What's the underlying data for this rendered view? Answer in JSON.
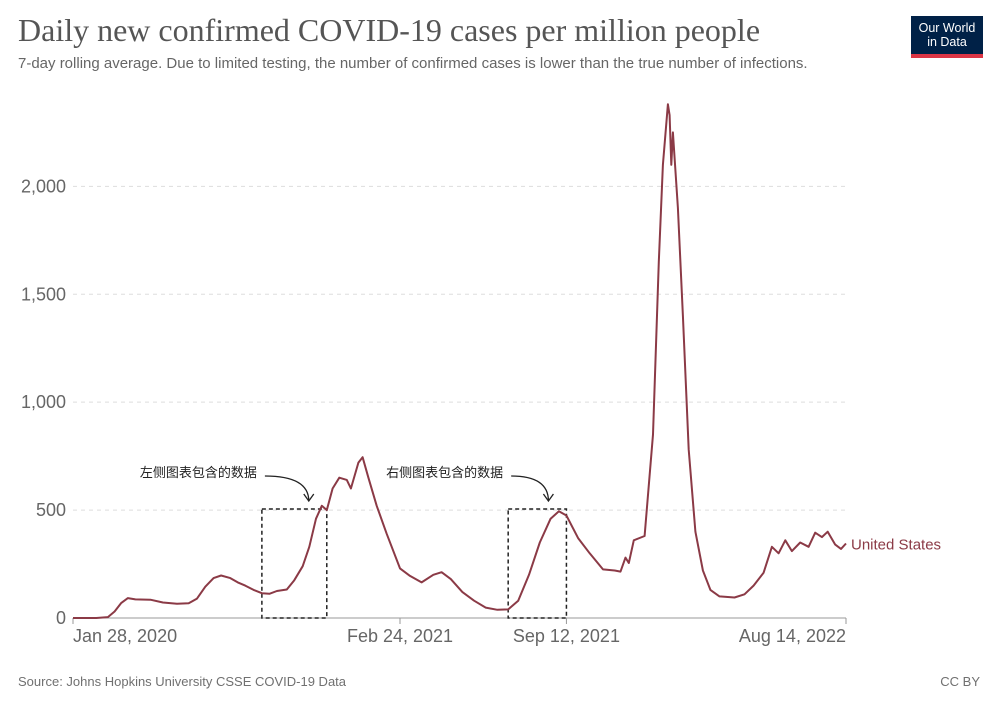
{
  "header": {
    "title": "Daily new confirmed COVID-19 cases per million people",
    "subtitle": "7-day rolling average. Due to limited testing, the number of confirmed cases is lower than the true number of infections.",
    "logo_line1": "Our World",
    "logo_line2": "in Data"
  },
  "footer": {
    "source": "Source: Johns Hopkins University CSSE COVID-19 Data",
    "license": "CC BY"
  },
  "colors": {
    "series": "#8b3a46",
    "grid": "#dddddd",
    "axis_text": "#666666",
    "logo_bg": "#002147",
    "logo_accent": "#dc3545"
  },
  "chart_data": {
    "type": "line",
    "title": "Daily new confirmed COVID-19 cases per million people",
    "subtitle": "7-day rolling average. Due to limited testing, the number of confirmed cases is lower than the true number of infections.",
    "xlabel": "",
    "ylabel": "",
    "x_range": [
      "2020-01-28",
      "2022-08-14"
    ],
    "ylim": [
      0,
      2400
    ],
    "y_ticks": [
      0,
      500,
      1000,
      1500,
      2000
    ],
    "y_tick_labels": [
      "0",
      "500",
      "1,000",
      "1,500",
      "2,000"
    ],
    "x_ticks": [
      "2020-01-28",
      "2021-02-24",
      "2021-09-12",
      "2022-08-14"
    ],
    "x_tick_labels": [
      "Jan 28, 2020",
      "Feb 24, 2021",
      "Sep 12, 2021",
      "Aug 14, 2022"
    ],
    "grid": true,
    "legend": "end-of-line label",
    "series": [
      {
        "name": "United States",
        "color": "#8b3a46",
        "points": [
          [
            "2020-01-28",
            0
          ],
          [
            "2020-02-25",
            0
          ],
          [
            "2020-03-10",
            4
          ],
          [
            "2020-03-18",
            30
          ],
          [
            "2020-03-26",
            70
          ],
          [
            "2020-04-03",
            92
          ],
          [
            "2020-04-12",
            86
          ],
          [
            "2020-04-30",
            85
          ],
          [
            "2020-05-15",
            72
          ],
          [
            "2020-06-01",
            66
          ],
          [
            "2020-06-15",
            68
          ],
          [
            "2020-06-25",
            90
          ],
          [
            "2020-07-05",
            145
          ],
          [
            "2020-07-15",
            185
          ],
          [
            "2020-07-24",
            197
          ],
          [
            "2020-08-04",
            185
          ],
          [
            "2020-08-13",
            165
          ],
          [
            "2020-08-22",
            150
          ],
          [
            "2020-09-01",
            130
          ],
          [
            "2020-09-11",
            115
          ],
          [
            "2020-09-20",
            112
          ],
          [
            "2020-09-29",
            125
          ],
          [
            "2020-10-11",
            132
          ],
          [
            "2020-10-20",
            175
          ],
          [
            "2020-10-30",
            240
          ],
          [
            "2020-11-07",
            330
          ],
          [
            "2020-11-15",
            460
          ],
          [
            "2020-11-22",
            520
          ],
          [
            "2020-11-28",
            500
          ],
          [
            "2020-12-05",
            600
          ],
          [
            "2020-12-13",
            650
          ],
          [
            "2020-12-22",
            640
          ],
          [
            "2020-12-27",
            600
          ],
          [
            "2021-01-05",
            720
          ],
          [
            "2021-01-10",
            745
          ],
          [
            "2021-01-17",
            650
          ],
          [
            "2021-01-27",
            520
          ],
          [
            "2021-02-08",
            390
          ],
          [
            "2021-02-24",
            230
          ],
          [
            "2021-03-08",
            195
          ],
          [
            "2021-03-22",
            165
          ],
          [
            "2021-04-05",
            200
          ],
          [
            "2021-04-15",
            212
          ],
          [
            "2021-04-26",
            180
          ],
          [
            "2021-05-10",
            120
          ],
          [
            "2021-05-24",
            80
          ],
          [
            "2021-06-07",
            48
          ],
          [
            "2021-06-21",
            38
          ],
          [
            "2021-07-04",
            40
          ],
          [
            "2021-07-16",
            80
          ],
          [
            "2021-07-29",
            200
          ],
          [
            "2021-08-11",
            350
          ],
          [
            "2021-08-24",
            460
          ],
          [
            "2021-09-03",
            495
          ],
          [
            "2021-09-12",
            475
          ],
          [
            "2021-09-26",
            370
          ],
          [
            "2021-10-10",
            300
          ],
          [
            "2021-10-26",
            225
          ],
          [
            "2021-11-09",
            220
          ],
          [
            "2021-11-16",
            215
          ],
          [
            "2021-11-22",
            280
          ],
          [
            "2021-11-26",
            255
          ],
          [
            "2021-12-02",
            360
          ],
          [
            "2021-12-15",
            380
          ],
          [
            "2021-12-25",
            850
          ],
          [
            "2022-01-01",
            1650
          ],
          [
            "2022-01-06",
            2100
          ],
          [
            "2022-01-12",
            2380
          ],
          [
            "2022-01-14",
            2330
          ],
          [
            "2022-01-16",
            2100
          ],
          [
            "2022-01-18",
            2250
          ],
          [
            "2022-01-24",
            1900
          ],
          [
            "2022-01-30",
            1400
          ],
          [
            "2022-02-06",
            780
          ],
          [
            "2022-02-14",
            400
          ],
          [
            "2022-02-23",
            220
          ],
          [
            "2022-03-04",
            130
          ],
          [
            "2022-03-15",
            100
          ],
          [
            "2022-04-02",
            95
          ],
          [
            "2022-04-14",
            110
          ],
          [
            "2022-04-25",
            150
          ],
          [
            "2022-05-07",
            210
          ],
          [
            "2022-05-17",
            330
          ],
          [
            "2022-05-25",
            300
          ],
          [
            "2022-06-02",
            360
          ],
          [
            "2022-06-10",
            310
          ],
          [
            "2022-06-20",
            350
          ],
          [
            "2022-06-30",
            330
          ],
          [
            "2022-07-08",
            395
          ],
          [
            "2022-07-16",
            375
          ],
          [
            "2022-07-23",
            400
          ],
          [
            "2022-08-01",
            340
          ],
          [
            "2022-08-08",
            320
          ],
          [
            "2022-08-14",
            345
          ]
        ]
      }
    ],
    "annotations": [
      {
        "label": "左侧图表包含的数据",
        "box_x": [
          "2020-09-11",
          "2020-11-28"
        ],
        "box_y": [
          0,
          505
        ]
      },
      {
        "label": "右侧图表包含的数据",
        "box_x": [
          "2021-07-04",
          "2021-09-12"
        ],
        "box_y": [
          0,
          505
        ]
      }
    ]
  }
}
